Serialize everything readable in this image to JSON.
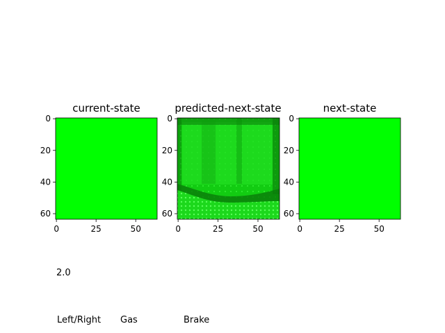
{
  "figure": {
    "panels": [
      {
        "title": "current-state",
        "image": "uniform-green"
      },
      {
        "title": "predicted-next-state",
        "image": "predicted-road-frame"
      },
      {
        "title": "next-state",
        "image": "uniform-green"
      }
    ],
    "x_ticks": [
      "0",
      "25",
      "50"
    ],
    "y_ticks": [
      "0",
      "20",
      "40",
      "60"
    ],
    "colors": {
      "green": "#00ff00",
      "dark_band": "#0a7a0a",
      "mid_green": "#14d414"
    }
  },
  "readout": {
    "value": "2.0"
  },
  "controls": {
    "left_right": "Left/Right",
    "gas": "Gas",
    "brake": "Brake"
  },
  "chart_data": {
    "type": "heatmap",
    "panels": [
      "current-state",
      "predicted-next-state",
      "next-state"
    ],
    "image_size": [
      64,
      64
    ],
    "x_ticks": [
      0,
      25,
      50
    ],
    "y_ticks": [
      0,
      20,
      40,
      60
    ]
  }
}
